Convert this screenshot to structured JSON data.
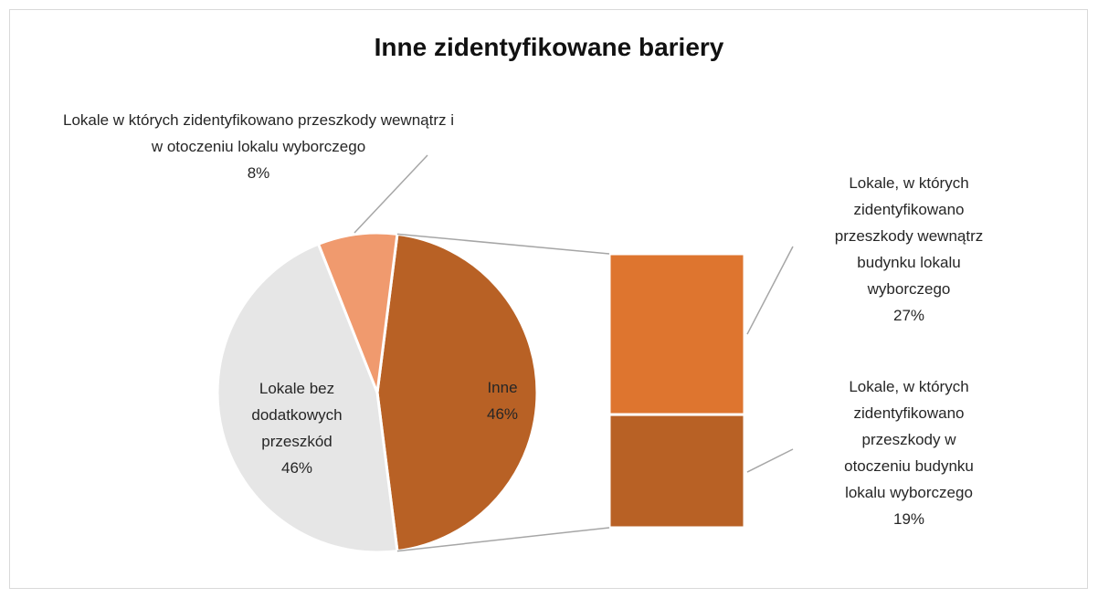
{
  "chart_data": {
    "type": "pie-of-bar",
    "title": "Inne zidentyfikowane bariery",
    "categories": [
      "Inne",
      "Lokale bez dodatkowych przeszkód",
      "Lokale w których zidentyfikowano przeszkody wewnątrz i w otoczeniu lokalu wyborczego"
    ],
    "values": [
      46,
      46,
      8
    ],
    "value_labels": [
      "46%",
      "46%",
      "8%"
    ],
    "colors": [
      "#b86125",
      "#e6e6e6",
      "#f09a6e"
    ],
    "bar": {
      "categories": [
        "Lokale, w których zidentyfikowano przeszkody wewnątrz budynku lokalu wyborczego",
        "Lokale, w których zidentyfikowano przeszkody w otoczeniu budynku lokalu wyborczego"
      ],
      "values": [
        27,
        19
      ],
      "value_labels": [
        "27%",
        "19%"
      ],
      "colors": [
        "#de752f",
        "#b86125"
      ]
    }
  }
}
